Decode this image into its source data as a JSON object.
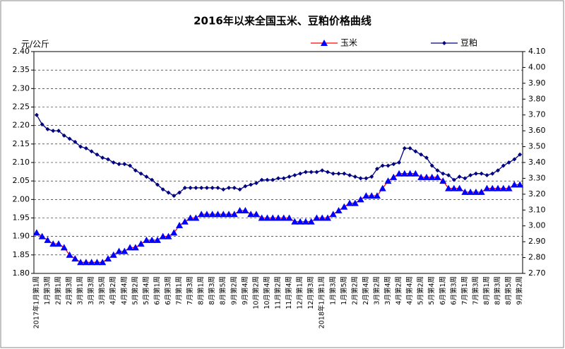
{
  "chart_data": {
    "type": "line",
    "title": "2016年以来全国玉米、豆粕价格曲线",
    "ylabel": "元/公斤",
    "legend": "top",
    "grid": true,
    "categories": [
      "2017年1月第1周",
      null,
      "1月第3周",
      null,
      "2月第1周",
      null,
      "2月第3周",
      null,
      "3月第1周",
      null,
      "3月第3周",
      null,
      "3月第5周",
      null,
      "4月第2周",
      null,
      "4月第4周",
      null,
      "5月第2周",
      null,
      "5月第4周",
      null,
      "6月第1周",
      null,
      "6月第3周",
      null,
      "7月第1周",
      null,
      "7月第3周",
      null,
      "8月第1周",
      null,
      "8月第3周",
      null,
      "8月第5周",
      null,
      "9月第2周",
      null,
      "9月第4周",
      null,
      "10月第2周",
      null,
      "10月第4周",
      null,
      "11月第2周",
      null,
      "11月第4周",
      null,
      "12月第1周",
      null,
      "12月第3周",
      null,
      "2018年1月第1周",
      null,
      "1月第3周",
      null,
      "1月第5周",
      null,
      "2月第2周",
      null,
      "2月第4周",
      null,
      "3月第2周",
      null,
      "3月第4周",
      null,
      "4月第2周",
      null,
      "4月第4周",
      null,
      "5月第2周",
      null,
      "5月第4周",
      null,
      "6月第1周",
      null,
      "6月第3周",
      null,
      "7月第1周",
      null,
      "7月第3周",
      null,
      "8月第1周",
      null,
      "8月第3周",
      null,
      "8月第5周",
      null,
      "9月第2周"
    ],
    "series": [
      {
        "name": "玉米",
        "color": "#ff0000",
        "marker_color": "#0000ff",
        "marker": "triangle",
        "values": [
          1.91,
          1.9,
          1.89,
          1.88,
          1.88,
          1.87,
          1.85,
          1.84,
          1.83,
          1.83,
          1.83,
          1.83,
          1.83,
          1.84,
          1.85,
          1.86,
          1.86,
          1.87,
          1.87,
          1.88,
          1.89,
          1.89,
          1.89,
          1.9,
          1.9,
          1.91,
          1.93,
          1.94,
          1.95,
          1.95,
          1.96,
          1.96,
          1.96,
          1.96,
          1.96,
          1.96,
          1.96,
          1.97,
          1.97,
          1.96,
          1.96,
          1.95,
          1.95,
          1.95,
          1.95,
          1.95,
          1.95,
          1.94,
          1.94,
          1.94,
          1.94,
          1.95,
          1.95,
          1.95,
          1.96,
          1.97,
          1.98,
          1.99,
          1.99,
          2.0,
          2.01,
          2.01,
          2.01,
          2.03,
          2.05,
          2.06,
          2.07,
          2.07,
          2.07,
          2.07,
          2.06,
          2.06,
          2.06,
          2.06,
          2.05,
          2.03,
          2.03,
          2.03,
          2.02,
          2.02,
          2.02,
          2.02,
          2.03,
          2.03,
          2.03,
          2.03,
          2.03,
          2.04,
          2.04
        ]
      },
      {
        "name": "豆粕",
        "color": "#000080",
        "marker_color": "#000080",
        "marker": "diamond",
        "axis": "y2",
        "values": [
          3.7,
          3.64,
          3.61,
          3.6,
          3.6,
          3.57,
          3.55,
          3.53,
          3.5,
          3.49,
          3.47,
          3.45,
          3.43,
          3.42,
          3.4,
          3.39,
          3.39,
          3.38,
          3.35,
          3.33,
          3.31,
          3.29,
          3.26,
          3.23,
          3.21,
          3.19,
          3.21,
          3.24,
          3.24,
          3.24,
          3.24,
          3.24,
          3.24,
          3.24,
          3.23,
          3.24,
          3.24,
          3.23,
          3.25,
          3.26,
          3.27,
          3.29,
          3.29,
          3.29,
          3.3,
          3.3,
          3.31,
          3.32,
          3.33,
          3.34,
          3.34,
          3.34,
          3.35,
          3.34,
          3.33,
          3.33,
          3.33,
          3.32,
          3.31,
          3.3,
          3.3,
          3.31,
          3.36,
          3.38,
          3.38,
          3.39,
          3.4,
          3.49,
          3.49,
          3.47,
          3.45,
          3.43,
          3.38,
          3.35,
          3.33,
          3.32,
          3.29,
          3.31,
          3.3,
          3.32,
          3.33,
          3.33,
          3.32,
          3.33,
          3.35,
          3.38,
          3.4,
          3.42,
          3.45
        ]
      }
    ],
    "ylim": [
      1.8,
      2.4
    ],
    "yticks": [
      {
        "value": 1.8,
        "label": "1.80"
      },
      {
        "value": 1.85,
        "label": "1.85"
      },
      {
        "value": 1.9,
        "label": "1.90"
      },
      {
        "value": 1.95,
        "label": "1.95"
      },
      {
        "value": 2.0,
        "label": "2.00"
      },
      {
        "value": 2.05,
        "label": "2.05"
      },
      {
        "value": 2.1,
        "label": "2.10"
      },
      {
        "value": 2.15,
        "label": "2.15"
      },
      {
        "value": 2.2,
        "label": "2.20"
      },
      {
        "value": 2.25,
        "label": "2.25"
      },
      {
        "value": 2.3,
        "label": "2.30"
      },
      {
        "value": 2.35,
        "label": "2.35"
      },
      {
        "value": 2.4,
        "label": "2.40"
      }
    ],
    "y2lim": [
      2.7,
      4.1
    ],
    "y2ticks": [
      {
        "value": 2.7,
        "label": "2.70"
      },
      {
        "value": 2.8,
        "label": "2.80"
      },
      {
        "value": 2.9,
        "label": "2.90"
      },
      {
        "value": 3.0,
        "label": "3.00"
      },
      {
        "value": 3.1,
        "label": "3.10"
      },
      {
        "value": 3.2,
        "label": "3.20"
      },
      {
        "value": 3.3,
        "label": "3.30"
      },
      {
        "value": 3.4,
        "label": "3.40"
      },
      {
        "value": 3.5,
        "label": "3.50"
      },
      {
        "value": 3.6,
        "label": "3.60"
      },
      {
        "value": 3.7,
        "label": "3.70"
      },
      {
        "value": 3.8,
        "label": "3.80"
      },
      {
        "value": 3.9,
        "label": "3.90"
      },
      {
        "value": 4.0,
        "label": "4.00"
      },
      {
        "value": 4.1,
        "label": "4.10"
      }
    ]
  }
}
